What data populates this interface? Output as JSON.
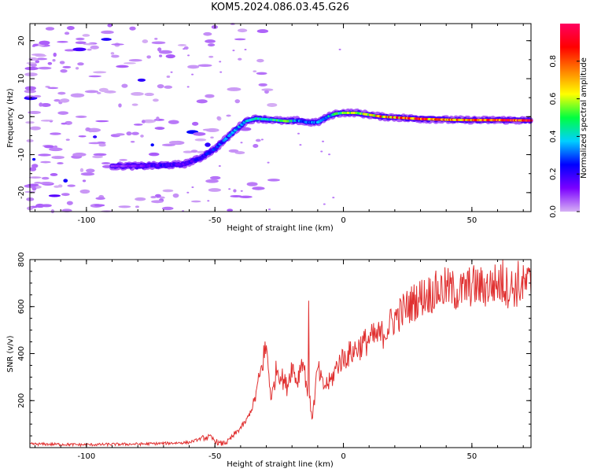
{
  "figure_title": "KOM5.2024.086.03.45.G26",
  "chart_data": [
    {
      "type": "heatmap",
      "panel": "spectrogram",
      "xlabel": "Height of straight line (km)",
      "ylabel": "Frequency (Hz)",
      "xlim": [
        -122,
        73
      ],
      "ylim": [
        -25,
        24.5
      ],
      "xticks": [
        -100,
        -50,
        0,
        50
      ],
      "xtick_labels": [
        "-100",
        "-50",
        "0",
        "50"
      ],
      "yticks": [
        -20,
        -10,
        0,
        10,
        20
      ],
      "ytick_labels": [
        "-20",
        "-10",
        "0",
        "10",
        "20"
      ],
      "colorbar": {
        "label": "Normalized spectral amplitude",
        "range": [
          0,
          1
        ],
        "ticks": [
          0,
          0.2,
          0.4,
          0.6,
          0.8
        ],
        "tick_labels": [
          "0.0",
          "0.2",
          "0.4",
          "0.6",
          "0.8"
        ],
        "colormap": [
          "#d6b0f4",
          "#7b00ff",
          "#0000ff",
          "#00d0ff",
          "#00ff40",
          "#ffff00",
          "#ff8000",
          "#ff0000",
          "#ff0060"
        ]
      },
      "ridge": {
        "x": [
          -90,
          -80,
          -70,
          -62,
          -56,
          -50,
          -46,
          -42,
          -38,
          -34,
          -28,
          -22,
          -18,
          -14,
          -10,
          -6,
          -3,
          0,
          5,
          10,
          15,
          20,
          30,
          40,
          50,
          60,
          73
        ],
        "y": [
          -13,
          -13,
          -12.8,
          -12.5,
          -11,
          -8.5,
          -6,
          -3.5,
          -1.2,
          -0.5,
          -0.8,
          -1.2,
          -1,
          -1.5,
          -1.5,
          0,
          0.8,
          1,
          1,
          0.5,
          0,
          -0.2,
          -0.6,
          -0.8,
          -0.9,
          -0.9,
          -1
        ],
        "amplitude": [
          0.08,
          0.12,
          0.2,
          0.15,
          0.2,
          0.25,
          0.3,
          0.32,
          0.35,
          0.4,
          0.45,
          0.5,
          0.35,
          0.3,
          0.3,
          0.35,
          0.45,
          0.5,
          0.55,
          0.6,
          0.7,
          0.75,
          0.8,
          0.7,
          0.75,
          0.8,
          0.85
        ]
      },
      "grid": false
    },
    {
      "type": "line",
      "panel": "snr",
      "xlabel": "Height of straight line (km)",
      "ylabel": "SNR (v/v)",
      "xlim": [
        -122,
        73
      ],
      "ylim": [
        0,
        800
      ],
      "xticks": [
        -100,
        -50,
        0,
        50
      ],
      "xtick_labels": [
        "-100",
        "-50",
        "0",
        "50"
      ],
      "yticks": [
        200,
        400,
        600,
        800
      ],
      "ytick_labels": [
        "200",
        "400",
        "600",
        "800"
      ],
      "color": "#e03030",
      "series": [
        {
          "x": [
            -122,
            -110,
            -100,
            -90,
            -80,
            -70,
            -60,
            -55,
            -52,
            -50,
            -48,
            -45,
            -42,
            -38,
            -35,
            -32,
            -30,
            -28,
            -26,
            -24,
            -22,
            -20,
            -18,
            -16,
            -14,
            -12,
            -10,
            -8,
            -5,
            -2,
            0,
            5,
            10,
            15,
            20,
            25,
            30,
            35,
            40,
            45,
            50,
            55,
            60,
            65,
            70,
            73
          ],
          "y": [
            15,
            14,
            12,
            14,
            15,
            18,
            22,
            40,
            45,
            30,
            15,
            25,
            60,
            110,
            180,
            330,
            430,
            200,
            340,
            300,
            260,
            350,
            280,
            380,
            250,
            130,
            340,
            260,
            280,
            360,
            380,
            420,
            460,
            480,
            550,
            600,
            640,
            660,
            680,
            660,
            690,
            680,
            700,
            680,
            690,
            700
          ],
          "spikes": [
            {
              "x": -31,
              "y": 435
            },
            {
              "x": -13.5,
              "y": 625
            },
            {
              "x": 62,
              "y": 800
            },
            {
              "x": 68,
              "y": 795
            }
          ]
        }
      ],
      "grid": false
    }
  ]
}
